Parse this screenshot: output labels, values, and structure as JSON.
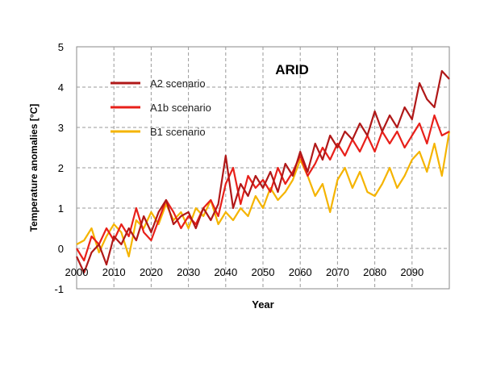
{
  "chart_data": {
    "type": "line",
    "title": "ARID",
    "xlabel": "Year",
    "ylabel": "Temperature anomalies [°C]",
    "xlim": [
      2000,
      2100
    ],
    "ylim": [
      -1,
      5
    ],
    "xticks": [
      2000,
      2010,
      2020,
      2030,
      2040,
      2050,
      2060,
      2070,
      2080,
      2090
    ],
    "yticks": [
      -1,
      0,
      1,
      2,
      3,
      4,
      5
    ],
    "xtick_labels": [
      "2000",
      "2010",
      "2020",
      "2030",
      "2040",
      "2050",
      "2060",
      "2070",
      "2080",
      "2090"
    ],
    "ytick_labels": [
      "-1",
      "0",
      "1",
      "2",
      "3",
      "4",
      "5"
    ],
    "grid": true,
    "legend_position": "upper-left",
    "series": [
      {
        "name": "A2 scenario",
        "color": "#B01818",
        "x": [
          2000,
          2002,
          2004,
          2006,
          2008,
          2010,
          2012,
          2014,
          2016,
          2018,
          2020,
          2022,
          2024,
          2026,
          2028,
          2030,
          2032,
          2034,
          2036,
          2038,
          2040,
          2042,
          2044,
          2046,
          2048,
          2050,
          2052,
          2054,
          2056,
          2058,
          2060,
          2062,
          2064,
          2066,
          2068,
          2070,
          2072,
          2074,
          2076,
          2078,
          2080,
          2082,
          2084,
          2086,
          2088,
          2090,
          2092,
          2094,
          2096,
          2098,
          2100
        ],
        "y": [
          -0.2,
          -0.6,
          -0.1,
          0.1,
          -0.4,
          0.3,
          0.1,
          0.5,
          0.2,
          0.8,
          0.4,
          0.9,
          1.2,
          0.6,
          0.8,
          0.9,
          0.5,
          1.0,
          0.7,
          1.1,
          2.3,
          1.0,
          1.6,
          1.3,
          1.8,
          1.5,
          1.9,
          1.4,
          2.1,
          1.8,
          2.4,
          1.9,
          2.6,
          2.2,
          2.8,
          2.5,
          2.9,
          2.7,
          3.1,
          2.8,
          3.4,
          2.9,
          3.3,
          3.0,
          3.5,
          3.2,
          4.1,
          3.7,
          3.5,
          4.4,
          4.2
        ]
      },
      {
        "name": "A1b scenario",
        "color": "#E8201A",
        "x": [
          2000,
          2002,
          2004,
          2006,
          2008,
          2010,
          2012,
          2014,
          2016,
          2018,
          2020,
          2022,
          2024,
          2026,
          2028,
          2030,
          2032,
          2034,
          2036,
          2038,
          2040,
          2042,
          2044,
          2046,
          2048,
          2050,
          2052,
          2054,
          2056,
          2058,
          2060,
          2062,
          2064,
          2066,
          2068,
          2070,
          2072,
          2074,
          2076,
          2078,
          2080,
          2082,
          2084,
          2086,
          2088,
          2090,
          2092,
          2094,
          2096,
          2098,
          2100
        ],
        "y": [
          0.0,
          -0.3,
          0.3,
          0.1,
          0.5,
          0.2,
          0.6,
          0.3,
          1.0,
          0.4,
          0.2,
          0.7,
          1.2,
          0.9,
          0.5,
          0.8,
          0.6,
          1.0,
          1.2,
          0.8,
          1.6,
          2.0,
          1.1,
          1.8,
          1.5,
          1.7,
          1.4,
          2.0,
          1.6,
          1.9,
          2.3,
          1.8,
          2.1,
          2.5,
          2.2,
          2.6,
          2.3,
          2.7,
          2.4,
          2.8,
          2.4,
          2.9,
          2.6,
          2.9,
          2.5,
          2.8,
          3.1,
          2.6,
          3.3,
          2.8,
          2.9
        ]
      },
      {
        "name": "B1 scenario",
        "color": "#F5B400",
        "x": [
          2000,
          2002,
          2004,
          2006,
          2008,
          2010,
          2012,
          2014,
          2016,
          2018,
          2020,
          2022,
          2024,
          2026,
          2028,
          2030,
          2032,
          2034,
          2036,
          2038,
          2040,
          2042,
          2044,
          2046,
          2048,
          2050,
          2052,
          2054,
          2056,
          2058,
          2060,
          2062,
          2064,
          2066,
          2068,
          2070,
          2072,
          2074,
          2076,
          2078,
          2080,
          2082,
          2084,
          2086,
          2088,
          2090,
          2092,
          2094,
          2096,
          2098,
          2100
        ],
        "y": [
          0.1,
          0.2,
          0.5,
          -0.1,
          0.3,
          0.6,
          0.4,
          -0.2,
          0.7,
          0.5,
          0.9,
          0.6,
          1.1,
          0.7,
          0.9,
          0.5,
          1.0,
          0.8,
          1.2,
          0.6,
          0.9,
          0.7,
          1.0,
          0.8,
          1.3,
          1.0,
          1.5,
          1.2,
          1.4,
          1.7,
          2.2,
          1.8,
          1.3,
          1.6,
          0.9,
          1.7,
          2.0,
          1.5,
          1.9,
          1.4,
          1.3,
          1.6,
          2.0,
          1.5,
          1.8,
          2.2,
          2.4,
          1.9,
          2.6,
          1.8,
          2.9
        ]
      }
    ]
  }
}
